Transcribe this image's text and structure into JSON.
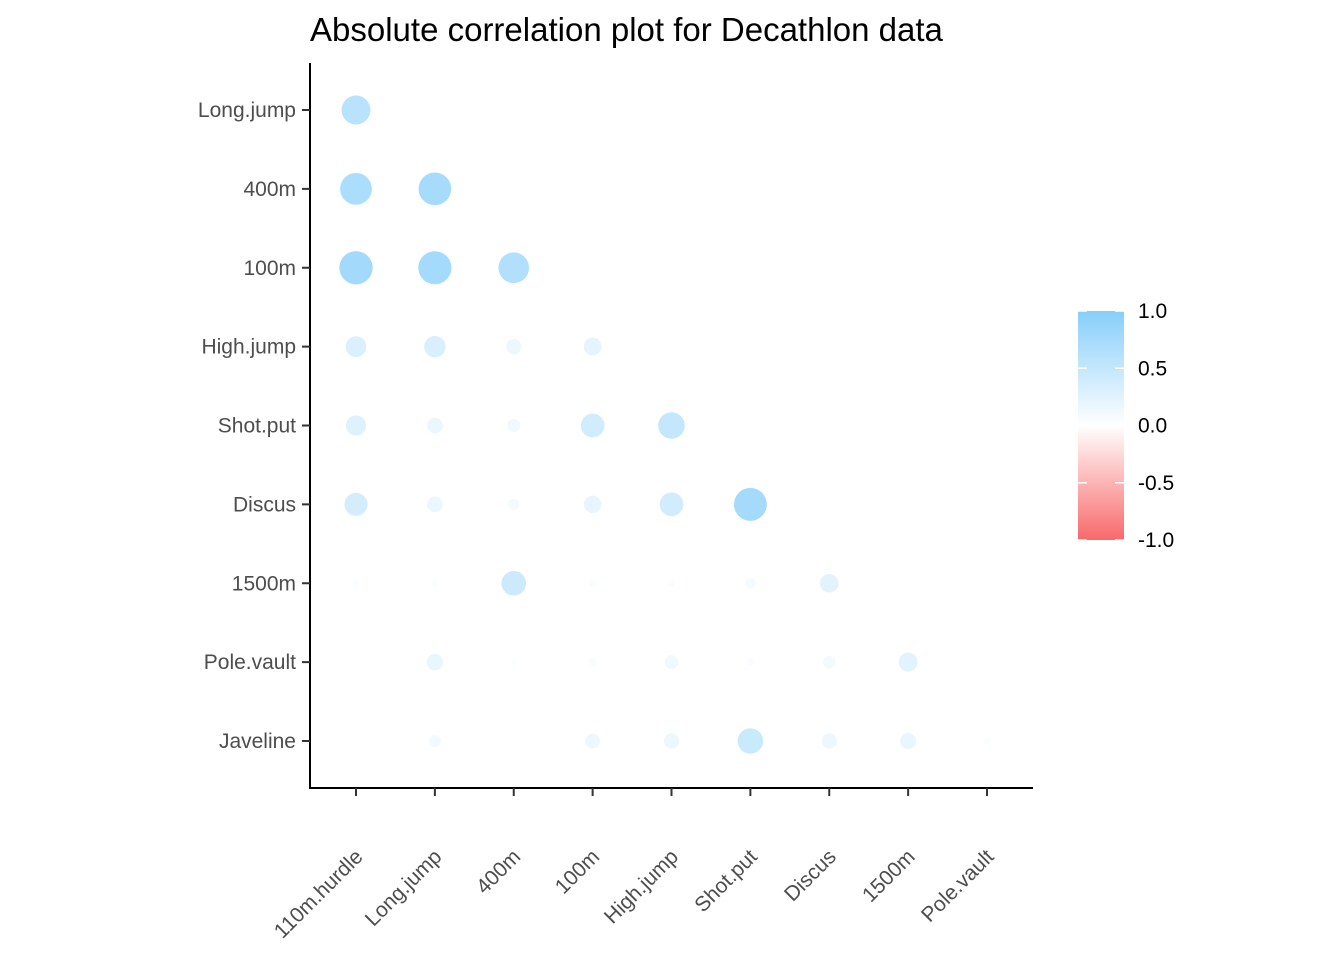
{
  "chart_data": {
    "type": "scatter",
    "subtype": "correlation-bubble-matrix",
    "title": "Absolute correlation plot for Decathlon data",
    "xlabel": "",
    "ylabel": "",
    "x_categories": [
      "110m.hurdle",
      "Long.jump",
      "400m",
      "100m",
      "High.jump",
      "Shot.put",
      "Discus",
      "1500m",
      "Pole.vault"
    ],
    "y_categories": [
      "Long.jump",
      "400m",
      "100m",
      "High.jump",
      "Shot.put",
      "Discus",
      "1500m",
      "Pole.vault",
      "Javeline"
    ],
    "points": [
      {
        "x": "110m.hurdle",
        "y": "Long.jump",
        "value": 0.58
      },
      {
        "x": "110m.hurdle",
        "y": "400m",
        "value": 0.7
      },
      {
        "x": "Long.jump",
        "y": "400m",
        "value": 0.74
      },
      {
        "x": "110m.hurdle",
        "y": "100m",
        "value": 0.77
      },
      {
        "x": "Long.jump",
        "y": "100m",
        "value": 0.76
      },
      {
        "x": "400m",
        "y": "100m",
        "value": 0.65
      },
      {
        "x": "110m.hurdle",
        "y": "High.jump",
        "value": 0.3
      },
      {
        "x": "Long.jump",
        "y": "High.jump",
        "value": 0.32
      },
      {
        "x": "400m",
        "y": "High.jump",
        "value": 0.16
      },
      {
        "x": "100m",
        "y": "High.jump",
        "value": 0.22
      },
      {
        "x": "110m.hurdle",
        "y": "Shot.put",
        "value": 0.28
      },
      {
        "x": "Long.jump",
        "y": "Shot.put",
        "value": 0.17
      },
      {
        "x": "400m",
        "y": "Shot.put",
        "value": 0.12
      },
      {
        "x": "100m",
        "y": "Shot.put",
        "value": 0.39
      },
      {
        "x": "High.jump",
        "y": "Shot.put",
        "value": 0.49
      },
      {
        "x": "110m.hurdle",
        "y": "Discus",
        "value": 0.37
      },
      {
        "x": "Long.jump",
        "y": "Discus",
        "value": 0.17
      },
      {
        "x": "400m",
        "y": "Discus",
        "value": 0.09
      },
      {
        "x": "100m",
        "y": "Discus",
        "value": 0.21
      },
      {
        "x": "High.jump",
        "y": "Discus",
        "value": 0.39
      },
      {
        "x": "Shot.put",
        "y": "Discus",
        "value": 0.75
      },
      {
        "x": "110m.hurdle",
        "y": "1500m",
        "value": 0.04
      },
      {
        "x": "Long.jump",
        "y": "1500m",
        "value": 0.03
      },
      {
        "x": "400m",
        "y": "1500m",
        "value": 0.42
      },
      {
        "x": "100m",
        "y": "1500m",
        "value": 0.05
      },
      {
        "x": "High.jump",
        "y": "1500m",
        "value": 0.04
      },
      {
        "x": "Shot.put",
        "y": "1500m",
        "value": 0.08
      },
      {
        "x": "Discus",
        "y": "1500m",
        "value": 0.24
      },
      {
        "x": "110m.hurdle",
        "y": "Pole.vault",
        "value": 0.01
      },
      {
        "x": "Long.jump",
        "y": "Pole.vault",
        "value": 0.19
      },
      {
        "x": "400m",
        "y": "Pole.vault",
        "value": 0.03
      },
      {
        "x": "100m",
        "y": "Pole.vault",
        "value": 0.05
      },
      {
        "x": "High.jump",
        "y": "Pole.vault",
        "value": 0.13
      },
      {
        "x": "Shot.put",
        "y": "Pole.vault",
        "value": 0.04
      },
      {
        "x": "Discus",
        "y": "Pole.vault",
        "value": 0.11
      },
      {
        "x": "1500m",
        "y": "Pole.vault",
        "value": 0.25
      },
      {
        "x": "110m.hurdle",
        "y": "Javeline",
        "value": 0.01
      },
      {
        "x": "Long.jump",
        "y": "Javeline",
        "value": 0.1
      },
      {
        "x": "400m",
        "y": "Javeline",
        "value": 0.01
      },
      {
        "x": "100m",
        "y": "Javeline",
        "value": 0.15
      },
      {
        "x": "High.jump",
        "y": "Javeline",
        "value": 0.16
      },
      {
        "x": "Shot.put",
        "y": "Javeline",
        "value": 0.45
      },
      {
        "x": "Discus",
        "y": "Javeline",
        "value": 0.16
      },
      {
        "x": "1500m",
        "y": "Javeline",
        "value": 0.18
      },
      {
        "x": "Pole.vault",
        "y": "Javeline",
        "value": 0.04
      }
    ],
    "legend": {
      "position": "right",
      "ticks": [
        "1.0",
        "0.5",
        "0.0",
        "-0.5",
        "-1.0"
      ],
      "range": [
        -1,
        1
      ],
      "colors": {
        "high": "#87cefa",
        "mid": "#ffffff",
        "low": "#f8696b"
      }
    },
    "grid": false
  }
}
